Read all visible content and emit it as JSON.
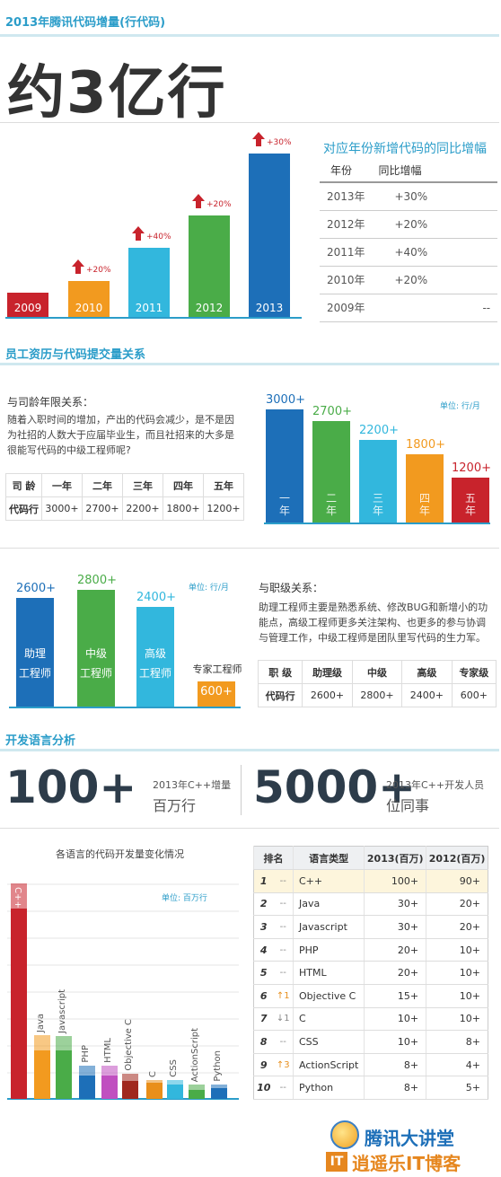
{
  "header": {
    "title": "2013年腾讯代码增量(行代码)",
    "big": "约3亿行"
  },
  "growth": {
    "bars": [
      {
        "year": "2009",
        "pct": "",
        "color": "#c8232c"
      },
      {
        "year": "2010",
        "pct": "+20%",
        "color": "#f29a1f"
      },
      {
        "year": "2011",
        "pct": "+40%",
        "color": "#32b7dd"
      },
      {
        "year": "2012",
        "pct": "+20%",
        "color": "#4aac48"
      },
      {
        "year": "2013",
        "pct": "+30%",
        "color": "#1d6fb8"
      }
    ],
    "table_title": "对应年份新增代码的同比增幅",
    "col_year": "年份",
    "col_growth": "同比增幅",
    "rows": [
      {
        "year": "2013年",
        "growth": "+30%"
      },
      {
        "year": "2012年",
        "growth": "+20%"
      },
      {
        "year": "2011年",
        "growth": "+40%"
      },
      {
        "year": "2010年",
        "growth": "+20%"
      },
      {
        "year": "2009年",
        "growth": "--"
      }
    ]
  },
  "seniority": {
    "title": "员工资历与代码提交量关系",
    "sub": "与司龄年限关系：",
    "desc": "随着入职时间的增加，产出的代码会减少，是不是因为社招的人数大于应届毕业生，而且社招来的大多是很能写代码的中级工程师呢?",
    "table": {
      "h0": "司 龄",
      "c0": "代码行",
      "cols": [
        "一年",
        "二年",
        "三年",
        "四年",
        "五年"
      ],
      "vals": [
        "3000+",
        "2700+",
        "2200+",
        "1800+",
        "1200+"
      ]
    },
    "unit": "单位: 行/月",
    "bars": [
      {
        "num": "3000+",
        "lab": "一\n年",
        "color": "#1d6fb8",
        "value": 3000
      },
      {
        "num": "2700+",
        "lab": "二\n年",
        "color": "#4aac48",
        "value": 2700
      },
      {
        "num": "2200+",
        "lab": "三\n年",
        "color": "#32b7dd",
        "value": 2200
      },
      {
        "num": "1800+",
        "lab": "四\n年",
        "color": "#f29a1f",
        "value": 1800
      },
      {
        "num": "1200+",
        "lab": "五\n年",
        "color": "#c8232c",
        "value": 1200
      }
    ]
  },
  "rank": {
    "unit": "单位: 行/月",
    "sub": "与职级关系：",
    "desc": "助理工程师主要是熟悉系统、修改BUG和新增小的功能点，高级工程师更多关注架构、也更多的参与协调与管理工作，中级工程师是团队里写代码的生力军。",
    "bars": [
      {
        "num": "2600+",
        "lab": "助理\n工程师",
        "color": "#1d6fb8",
        "value": 2600
      },
      {
        "num": "2800+",
        "lab": "中级\n工程师",
        "color": "#4aac48",
        "value": 2800
      },
      {
        "num": "2400+",
        "lab": "高级\n工程师",
        "color": "#32b7dd",
        "value": 2400
      },
      {
        "num": "600+",
        "lab": "专家工程师",
        "color": "#f29a1f",
        "value": 600
      }
    ],
    "table": {
      "h0": "职 级",
      "c0": "代码行",
      "cols": [
        "助理级",
        "中级",
        "高级",
        "专家级"
      ],
      "vals": [
        "2600+",
        "2800+",
        "2400+",
        "600+"
      ]
    }
  },
  "lang": {
    "title": "开发语言分析",
    "stat1": {
      "num": "100+",
      "l1": "2013年C++增量",
      "l2": "百万行"
    },
    "stat2": {
      "num": "5000+",
      "l1": "2013年C++开发人员",
      "l2": "位同事"
    },
    "chart_title": "各语言的代码开发量变化情况",
    "unit": "单位: 百万行",
    "headers": [
      "排名",
      "语言类型",
      "2013(百万)",
      "2012(百万)"
    ],
    "rows": [
      {
        "rank": "1",
        "chg": "--",
        "lang": "C++",
        "v13": "100+",
        "v12": "90+"
      },
      {
        "rank": "2",
        "chg": "--",
        "lang": "Java",
        "v13": "30+",
        "v12": "20+"
      },
      {
        "rank": "3",
        "chg": "--",
        "lang": "Javascript",
        "v13": "30+",
        "v12": "20+"
      },
      {
        "rank": "4",
        "chg": "--",
        "lang": "PHP",
        "v13": "20+",
        "v12": "10+"
      },
      {
        "rank": "5",
        "chg": "--",
        "lang": "HTML",
        "v13": "20+",
        "v12": "10+"
      },
      {
        "rank": "6",
        "chg": "↑1",
        "lang": "Objective C",
        "v13": "15+",
        "v12": "10+"
      },
      {
        "rank": "7",
        "chg": "↓1",
        "lang": "C",
        "v13": "10+",
        "v12": "10+"
      },
      {
        "rank": "8",
        "chg": "--",
        "lang": "CSS",
        "v13": "10+",
        "v12": "8+"
      },
      {
        "rank": "9",
        "chg": "↑3",
        "lang": "ActionScript",
        "v13": "8+",
        "v12": "4+"
      },
      {
        "rank": "10",
        "chg": "--",
        "lang": "Python",
        "v13": "8+",
        "v12": "5+"
      }
    ]
  },
  "footer": {
    "brand1": "腾讯大讲堂",
    "brand2": "逍遥乐IT博客"
  }
}
